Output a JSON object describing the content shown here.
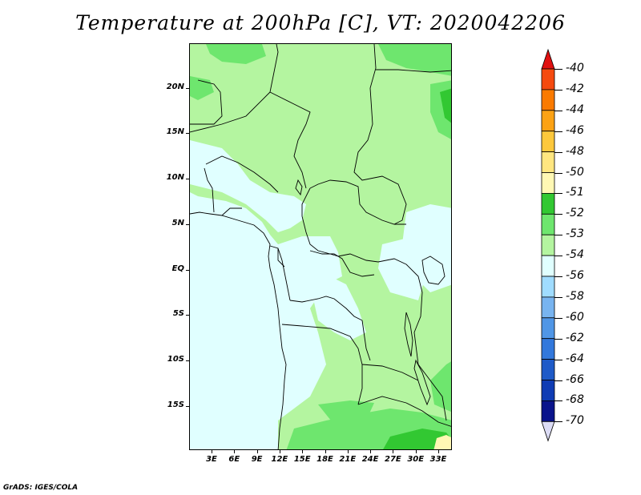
{
  "title": "Temperature at 200hPa [C], VT: 2020042206",
  "footer": "GrADS: IGES/COLA",
  "lat_labels": [
    "20N",
    "15N",
    "10N",
    "5N",
    "EQ",
    "5S",
    "10S",
    "15S"
  ],
  "lon_labels": [
    "3E",
    "6E",
    "9E",
    "12E",
    "15E",
    "18E",
    "21E",
    "24E",
    "27E",
    "30E",
    "33E"
  ],
  "colorbar": {
    "labels": [
      "-40",
      "-42",
      "-44",
      "-46",
      "-48",
      "-50",
      "-51",
      "-52",
      "-53",
      "-54",
      "-56",
      "-58",
      "-60",
      "-62",
      "-64",
      "-66",
      "-68",
      "-70"
    ],
    "colors": [
      "#f01e1e",
      "#f54a0f",
      "#fa7a00",
      "#fca214",
      "#fdc83c",
      "#ffe680",
      "#fff8b4",
      "#32c832",
      "#6ee66e",
      "#b4f5a0",
      "#e0ffff",
      "#a0dcff",
      "#78b4f0",
      "#5096e6",
      "#3278dc",
      "#1e5ac8",
      "#0f3cb4",
      "#0a148c"
    ],
    "top_arrow_color": "#e01010",
    "bottom_arrow_color": "#dcdcf5"
  },
  "map_colors": {
    "c_m54": "#e0ffff",
    "c_m53": "#b4f5a0",
    "c_m52": "#6ee66e",
    "c_m51": "#32c832",
    "c_m50": "#fff8b4"
  }
}
